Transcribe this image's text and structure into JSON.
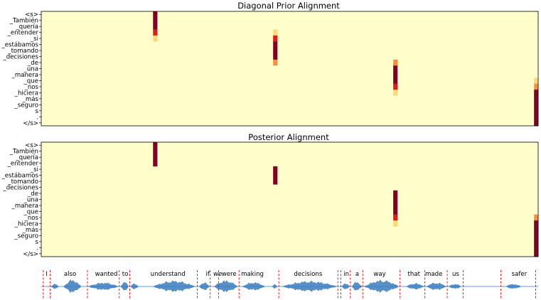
{
  "colors": {
    "cmap": [
      "#ffffcc",
      "#fed976",
      "#fd8d3c",
      "#e31a1c",
      "#800026"
    ],
    "waveform": "#3a7dbf",
    "boundary": "#e31a1c",
    "frame": "#000000"
  },
  "chart_data": [
    {
      "type": "heatmap",
      "title": "Diagonal Prior Alignment",
      "y_tokens": [
        "<s>",
        "_También",
        "_quería",
        "_entender",
        "_si",
        "_estábamos",
        "_tomando",
        "_decisiones",
        "_de",
        "_una",
        "_manera",
        "_que",
        "_nos",
        "_hiciera",
        "_más",
        "_seguro",
        "s",
        ".",
        "</s>"
      ],
      "x_frames": 120,
      "grid": false,
      "cells": [
        {
          "col": 27,
          "row": 0,
          "v": 1.0
        },
        {
          "col": 27,
          "row": 1,
          "v": 1.0
        },
        {
          "col": 27,
          "row": 2,
          "v": 0.9
        },
        {
          "col": 27,
          "row": 3,
          "v": 0.6
        },
        {
          "col": 27,
          "row": 4,
          "v": 0.2
        },
        {
          "col": 56,
          "row": 2,
          "v": 0.1
        },
        {
          "col": 56,
          "row": 3,
          "v": 0.3
        },
        {
          "col": 56,
          "row": 4,
          "v": 0.6
        },
        {
          "col": 56,
          "row": 5,
          "v": 0.95
        },
        {
          "col": 56,
          "row": 6,
          "v": 1.0
        },
        {
          "col": 56,
          "row": 7,
          "v": 0.9
        },
        {
          "col": 56,
          "row": 8,
          "v": 0.4
        },
        {
          "col": 56,
          "row": 9,
          "v": 0.1
        },
        {
          "col": 85,
          "row": 7,
          "v": 0.1
        },
        {
          "col": 85,
          "row": 8,
          "v": 0.45
        },
        {
          "col": 85,
          "row": 9,
          "v": 0.95
        },
        {
          "col": 85,
          "row": 10,
          "v": 1.0
        },
        {
          "col": 85,
          "row": 11,
          "v": 1.0
        },
        {
          "col": 85,
          "row": 12,
          "v": 0.75
        },
        {
          "col": 85,
          "row": 13,
          "v": 0.3
        },
        {
          "col": 85,
          "row": 14,
          "v": 0.1
        },
        {
          "col": 119,
          "row": 11,
          "v": 0.15
        },
        {
          "col": 119,
          "row": 12,
          "v": 0.45
        },
        {
          "col": 119,
          "row": 13,
          "v": 0.85
        },
        {
          "col": 119,
          "row": 14,
          "v": 1.0
        },
        {
          "col": 119,
          "row": 15,
          "v": 1.0
        },
        {
          "col": 119,
          "row": 16,
          "v": 1.0
        },
        {
          "col": 119,
          "row": 17,
          "v": 1.0
        },
        {
          "col": 119,
          "row": 18,
          "v": 1.0
        }
      ]
    },
    {
      "type": "heatmap",
      "title": "Posterior Alignment",
      "y_tokens": [
        "<s>",
        "_También",
        "_quería",
        "_entender",
        "_si",
        "_estábamos",
        "_tomando",
        "_decisiones",
        "_de",
        "_una",
        "_manera",
        "_que",
        "_nos",
        "_hiciera",
        "_más",
        "_seguro",
        "s",
        ".",
        "</s>"
      ],
      "x_frames": 120,
      "grid": false,
      "cells": [
        {
          "col": 27,
          "row": 0,
          "v": 1.0
        },
        {
          "col": 27,
          "row": 1,
          "v": 1.0
        },
        {
          "col": 27,
          "row": 2,
          "v": 1.0
        },
        {
          "col": 27,
          "row": 3,
          "v": 1.0
        },
        {
          "col": 56,
          "row": 4,
          "v": 1.0
        },
        {
          "col": 56,
          "row": 5,
          "v": 1.0
        },
        {
          "col": 56,
          "row": 6,
          "v": 1.0
        },
        {
          "col": 85,
          "row": 7,
          "v": 0.1
        },
        {
          "col": 85,
          "row": 8,
          "v": 1.0
        },
        {
          "col": 85,
          "row": 9,
          "v": 1.0
        },
        {
          "col": 85,
          "row": 10,
          "v": 1.0
        },
        {
          "col": 85,
          "row": 11,
          "v": 1.0
        },
        {
          "col": 85,
          "row": 12,
          "v": 0.6
        },
        {
          "col": 85,
          "row": 13,
          "v": 0.25
        },
        {
          "col": 119,
          "row": 12,
          "v": 0.5
        },
        {
          "col": 119,
          "row": 13,
          "v": 1.0
        },
        {
          "col": 119,
          "row": 14,
          "v": 1.0
        },
        {
          "col": 119,
          "row": 15,
          "v": 1.0
        },
        {
          "col": 119,
          "row": 16,
          "v": 1.0
        },
        {
          "col": 119,
          "row": 17,
          "v": 1.0
        },
        {
          "col": 119,
          "row": 18,
          "v": 1.0
        }
      ]
    },
    {
      "type": "area",
      "title": "",
      "x_range": [
        0,
        1
      ],
      "words": [
        {
          "text": "I",
          "x": 0.011
        },
        {
          "text": "also",
          "x": 0.058
        },
        {
          "text": "wanted",
          "x": 0.131
        },
        {
          "text": "to",
          "x": 0.169
        },
        {
          "text": "understand",
          "x": 0.255
        },
        {
          "text": "if",
          "x": 0.335
        },
        {
          "text": "we",
          "x": 0.355
        },
        {
          "text": "were",
          "x": 0.378
        },
        {
          "text": "making",
          "x": 0.425
        },
        {
          "text": "decisions",
          "x": 0.537
        },
        {
          "text": "in",
          "x": 0.614
        },
        {
          "text": "a",
          "x": 0.636
        },
        {
          "text": "way",
          "x": 0.681
        },
        {
          "text": "that",
          "x": 0.75
        },
        {
          "text": "made",
          "x": 0.79
        },
        {
          "text": "us",
          "x": 0.834
        },
        {
          "text": "safer",
          "x": 0.962
        }
      ],
      "boundaries": [
        0.004,
        0.018,
        0.093,
        0.157,
        0.178,
        0.314,
        0.34,
        0.357,
        0.398,
        0.478,
        0.597,
        0.603,
        0.622,
        0.647,
        0.722,
        0.772,
        0.817,
        0.849,
        0.925,
        0.995
      ],
      "segments": [
        {
          "x0": 0.02,
          "x1": 0.035,
          "amp": 0.35
        },
        {
          "x0": 0.045,
          "x1": 0.08,
          "amp": 0.95
        },
        {
          "x0": 0.095,
          "x1": 0.155,
          "amp": 0.55
        },
        {
          "x0": 0.16,
          "x1": 0.175,
          "amp": 0.7
        },
        {
          "x0": 0.18,
          "x1": 0.195,
          "amp": 0.45
        },
        {
          "x0": 0.225,
          "x1": 0.31,
          "amp": 0.8
        },
        {
          "x0": 0.318,
          "x1": 0.338,
          "amp": 0.6
        },
        {
          "x0": 0.348,
          "x1": 0.395,
          "amp": 0.85
        },
        {
          "x0": 0.405,
          "x1": 0.45,
          "amp": 0.6
        },
        {
          "x0": 0.465,
          "x1": 0.475,
          "amp": 0.3
        },
        {
          "x0": 0.485,
          "x1": 0.595,
          "amp": 0.75
        },
        {
          "x0": 0.605,
          "x1": 0.62,
          "amp": 0.5
        },
        {
          "x0": 0.625,
          "x1": 0.645,
          "amp": 0.65
        },
        {
          "x0": 0.65,
          "x1": 0.72,
          "amp": 0.9
        },
        {
          "x0": 0.735,
          "x1": 0.77,
          "amp": 0.45
        },
        {
          "x0": 0.775,
          "x1": 0.815,
          "amp": 0.55
        },
        {
          "x0": 0.82,
          "x1": 0.845,
          "amp": 0.35
        },
        {
          "x0": 0.935,
          "x1": 0.965,
          "amp": 0.35
        }
      ]
    }
  ]
}
